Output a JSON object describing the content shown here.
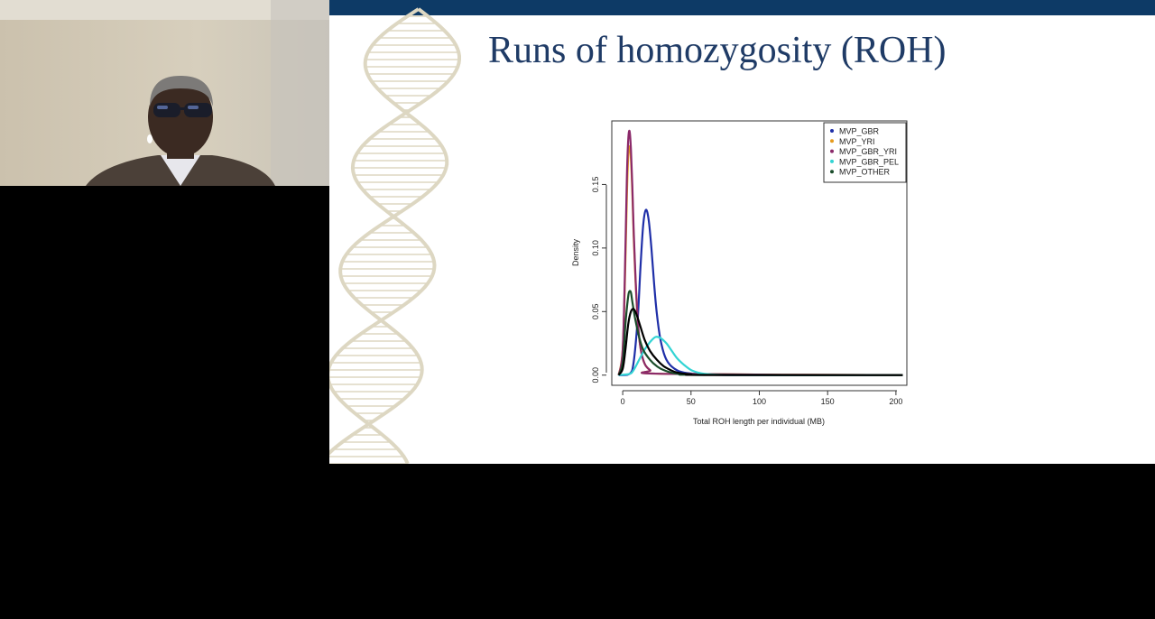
{
  "slide": {
    "title": "Runs of homozygosity (ROH)",
    "colors": {
      "title": "#1f3b66",
      "top_bar": "#0d3a66",
      "helix": "#ddd7c2"
    }
  },
  "webcam": {
    "description_icon": "presenter-video-feed",
    "colors": {
      "wall": "#cfc6b3",
      "jacket": "#4b4038"
    }
  },
  "chart_data": {
    "type": "line",
    "title": "",
    "xlabel": "Total ROH length per individual (MB)",
    "ylabel": "Density",
    "xlim": [
      -8,
      208
    ],
    "ylim": [
      -0.008,
      0.2
    ],
    "xticks": [
      0,
      50,
      100,
      150,
      200
    ],
    "yticks": [
      0.0,
      0.05,
      0.1,
      0.15
    ],
    "ytick_labels": [
      "0.00",
      "0.05",
      "0.10",
      "0.15"
    ],
    "legend_position": "top-right",
    "series": [
      {
        "name": "MVP_GBR",
        "color": "#1f2fa8",
        "x": [
          -3,
          5,
          8,
          11,
          13,
          15,
          17,
          19,
          21,
          23,
          25,
          28,
          32,
          38,
          45,
          60,
          90,
          205
        ],
        "y": [
          0,
          0.001,
          0.01,
          0.045,
          0.085,
          0.118,
          0.13,
          0.122,
          0.1,
          0.072,
          0.048,
          0.026,
          0.012,
          0.005,
          0.002,
          0.0005,
          0,
          0
        ]
      },
      {
        "name": "MVP_YRI",
        "color": "#e69b1e",
        "x": [
          -3,
          0,
          2,
          3,
          4,
          5,
          6,
          7,
          8,
          10,
          12,
          15,
          20,
          30,
          205
        ],
        "y": [
          0,
          0.02,
          0.09,
          0.14,
          0.172,
          0.18,
          0.17,
          0.145,
          0.11,
          0.06,
          0.03,
          0.012,
          0.004,
          0.001,
          0
        ]
      },
      {
        "name": "MVP_GBR_YRI",
        "color": "#8b2a6a",
        "x": [
          -3,
          0,
          2,
          3,
          4,
          5,
          6,
          7,
          8,
          10,
          12,
          15,
          20,
          30,
          205
        ],
        "y": [
          0,
          0.02,
          0.1,
          0.155,
          0.185,
          0.192,
          0.178,
          0.15,
          0.115,
          0.062,
          0.03,
          0.012,
          0.004,
          0.001,
          0
        ]
      },
      {
        "name": "MVP_GBR_PEL",
        "color": "#33d4d4",
        "x": [
          -3,
          5,
          8,
          12,
          16,
          20,
          24,
          28,
          32,
          36,
          40,
          45,
          50,
          55,
          60,
          70,
          90,
          205
        ],
        "y": [
          0,
          0.001,
          0.004,
          0.012,
          0.02,
          0.026,
          0.03,
          0.029,
          0.025,
          0.019,
          0.013,
          0.008,
          0.004,
          0.002,
          0.001,
          0.0003,
          0,
          0
        ]
      },
      {
        "name": "MVP_OTHER",
        "color": "#1b4d2b",
        "x": [
          -3,
          0,
          2,
          4,
          5,
          6,
          7,
          9,
          12,
          15,
          20,
          25,
          30,
          40,
          60,
          205
        ],
        "y": [
          0,
          0.01,
          0.04,
          0.062,
          0.066,
          0.065,
          0.058,
          0.045,
          0.03,
          0.02,
          0.012,
          0.007,
          0.004,
          0.001,
          0.0002,
          0
        ]
      },
      {
        "name": "",
        "color": "#000000",
        "x": [
          -3,
          0,
          2,
          4,
          6,
          8,
          10,
          13,
          16,
          20,
          25,
          30,
          35,
          40,
          50,
          60,
          205
        ],
        "y": [
          0,
          0.005,
          0.02,
          0.04,
          0.05,
          0.052,
          0.048,
          0.038,
          0.028,
          0.019,
          0.012,
          0.007,
          0.004,
          0.002,
          0.0006,
          0.0001,
          0
        ]
      }
    ]
  }
}
